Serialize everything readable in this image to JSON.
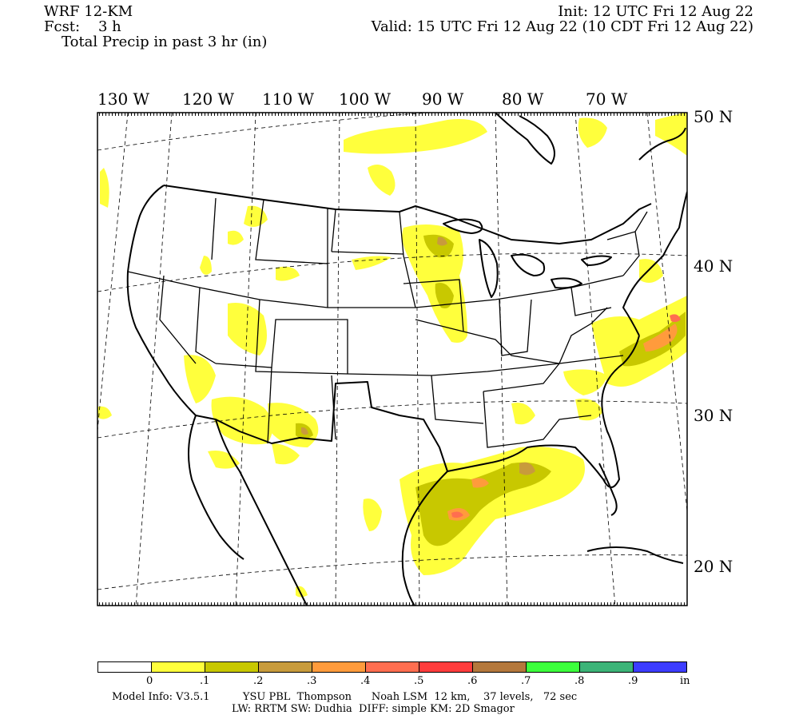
{
  "header": {
    "model": "WRF 12-KM",
    "fcst": "Fcst:    3 h",
    "field": "Total Precip in past 3 hr (in)",
    "init": "Init: 12 UTC Fri 12 Aug 22",
    "valid": "Valid: 15 UTC Fri 12 Aug 22 (10 CDT Fri 12 Aug 22)"
  },
  "map": {
    "lon_labels": [
      "130 W",
      "120 W",
      "110 W",
      "100 W",
      "90 W",
      "80 W",
      "70 W"
    ],
    "lat_labels": [
      "50 N",
      "40 N",
      "30 N",
      "20 N"
    ],
    "colors": {
      "light_yellow": "#ffff3c",
      "olive": "#c8c800",
      "tan": "#c89b3c",
      "orange": "#ff9b3c",
      "coral": "#ff6e50"
    }
  },
  "legend": {
    "colors": [
      "#ffffff",
      "#ffff3c",
      "#c8c800",
      "#c89b3c",
      "#ff9b3c",
      "#ff6e50",
      "#ff3c3c",
      "#b4783c",
      "#3cff3c",
      "#3cb478",
      "#3c3cff"
    ],
    "labels": [
      "0",
      ".1",
      ".2",
      ".3",
      ".4",
      ".5",
      ".6",
      ".7",
      ".8",
      ".9",
      "in"
    ]
  },
  "footer": {
    "line1": "Model Info: V3.5.1          YSU PBL  Thompson      Noah LSM  12 km,    37 levels,   72 sec",
    "line2": "LW: RRTM SW: Dudhia  DIFF: simple KM: 2D Smagor"
  }
}
